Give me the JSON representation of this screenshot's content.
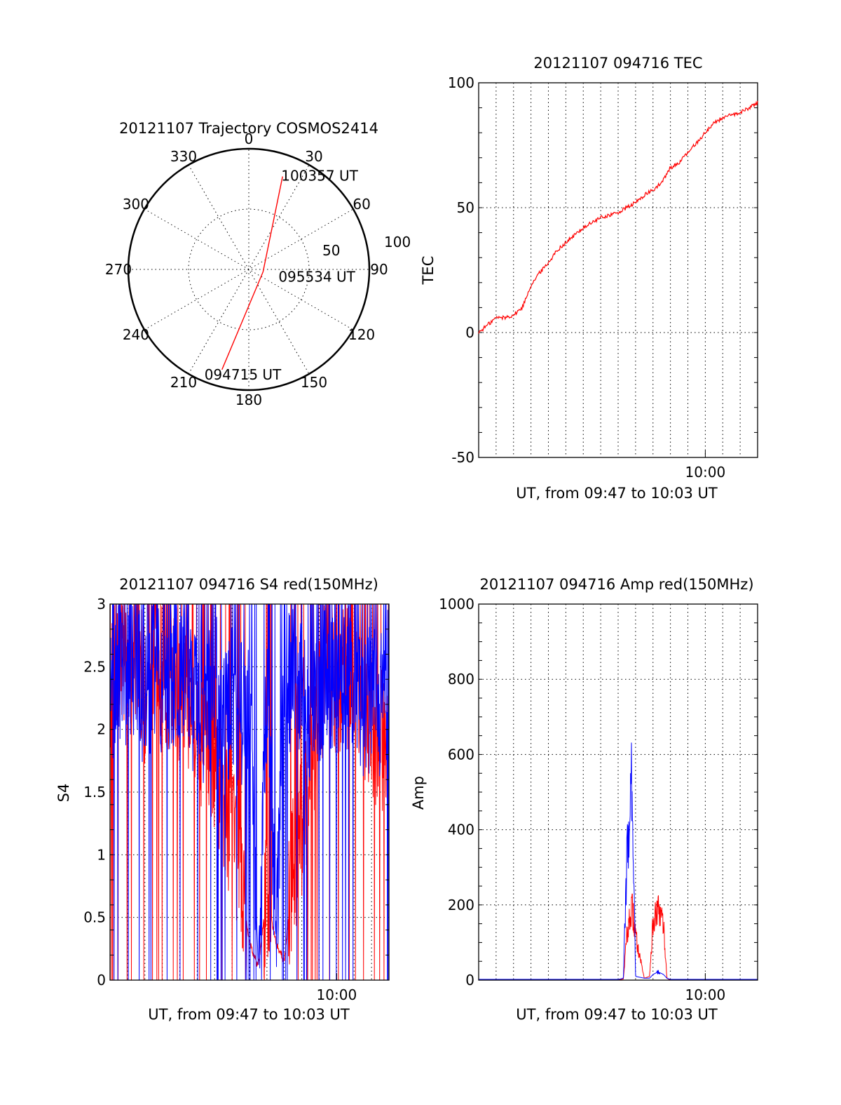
{
  "chart_data": [
    {
      "id": "trajectory",
      "type": "polar",
      "title": "20121107 Trajectory COSMOS2414",
      "azimuth_labels": [
        "0",
        "30",
        "60",
        "90",
        "120",
        "150",
        "180",
        "210",
        "240",
        "270",
        "300",
        "330"
      ],
      "radial_labels": [
        "50",
        "100"
      ],
      "rlim": [
        0,
        100
      ],
      "grid": true,
      "series": [
        {
          "color": "#ff0000",
          "points": [
            {
              "az": 20,
              "r": 82,
              "label": "100357 UT"
            },
            {
              "az": 100,
              "r": 12,
              "label": "095534 UT"
            },
            {
              "az": 195,
              "r": 86,
              "label": "094715 UT"
            }
          ]
        }
      ]
    },
    {
      "id": "tec",
      "type": "line",
      "title": "20121107 094716 TEC",
      "xlabel": "UT, from 09:47 to 10:03 UT",
      "ylabel": "TEC",
      "xlim": [
        "09:47",
        "10:03"
      ],
      "ylim": [
        -50,
        100
      ],
      "yticks": [
        "-50",
        "0",
        "50",
        "100"
      ],
      "xticks": [
        "10:00"
      ],
      "grid": true,
      "series": [
        {
          "color": "#ff0000",
          "x": [
            0,
            0.5,
            1,
            1.5,
            2,
            2.5,
            3,
            3.5,
            4,
            4.5,
            5,
            5.5,
            6,
            6.5,
            7,
            7.5,
            8,
            8.5,
            9,
            9.5,
            10,
            10.5,
            11,
            11.5,
            12,
            12.5,
            13,
            13.5,
            14,
            14.5,
            15,
            15.5,
            16
          ],
          "y": [
            0,
            3,
            6,
            6,
            7,
            10,
            19,
            24,
            28,
            33,
            36,
            39,
            42,
            44,
            46,
            47,
            48,
            50,
            52,
            55,
            57,
            60,
            66,
            68,
            72,
            76,
            80,
            84,
            86,
            87,
            88,
            90,
            92
          ]
        }
      ]
    },
    {
      "id": "s4",
      "type": "line",
      "title": "20121107 094716 S4 red(150MHz)",
      "xlabel": "UT, from 09:47 to 10:03 UT",
      "ylabel": "S4",
      "xlim": [
        "09:47",
        "10:03"
      ],
      "ylim": [
        0,
        3
      ],
      "yticks": [
        "0",
        "0.5",
        "1",
        "1.5",
        "2",
        "2.5",
        "3"
      ],
      "xticks": [
        "10:00"
      ],
      "grid": true,
      "series": [
        {
          "color": "#ff0000",
          "x": [
            0,
            0.5,
            1,
            1.5,
            2,
            2.5,
            3,
            3.5,
            4,
            4.5,
            5,
            5.5,
            6,
            6.5,
            7,
            7.5,
            8,
            8.5,
            9,
            9.5,
            10,
            10.5,
            11,
            11.5,
            12,
            12.5,
            13,
            13.5,
            14,
            14.5,
            15,
            15.5,
            16
          ],
          "y": [
            2.4,
            2.6,
            2.5,
            2.7,
            2.3,
            2.6,
            2.5,
            2.4,
            2.3,
            2.2,
            2.0,
            1.9,
            1.7,
            1.4,
            1.2,
            0.8,
            0.3,
            0.1,
            0.7,
            0.3,
            0.15,
            0.9,
            1.2,
            1.6,
            2.2,
            2.6,
            2.3,
            2.4,
            2.5,
            2.2,
            2.0,
            1.9,
            1.8
          ]
        },
        {
          "color": "#0000ff",
          "x": [
            0,
            0.5,
            1,
            1.5,
            2,
            2.5,
            3,
            3.5,
            4,
            4.5,
            5,
            5.5,
            6,
            6.5,
            7,
            7.5,
            8,
            8.5,
            9,
            9.5,
            10,
            10.5,
            11,
            11.5,
            12,
            12.5,
            13,
            13.5,
            14,
            14.5,
            15,
            15.5,
            16
          ],
          "y": [
            2.2,
            2.5,
            2.4,
            2.6,
            2.2,
            2.5,
            2.4,
            2.3,
            2.5,
            2.2,
            2.3,
            2.1,
            2.4,
            2.0,
            2.3,
            2.1,
            2.2,
            0.12,
            2.4,
            0.35,
            2.2,
            2.5,
            2.4,
            2.1,
            2.3,
            2.5,
            2.2,
            2.4,
            2.3,
            2.1,
            2.3,
            2.2,
            2.4
          ]
        }
      ]
    },
    {
      "id": "amp",
      "type": "line",
      "title": "20121107 094716 Amp red(150MHz)",
      "xlabel": "UT, from 09:47 to 10:03 UT",
      "ylabel": "Amp",
      "xlim": [
        "09:47",
        "10:03"
      ],
      "ylim": [
        0,
        1000
      ],
      "yticks": [
        "0",
        "200",
        "400",
        "600",
        "800",
        "1000"
      ],
      "xticks": [
        "10:00"
      ],
      "grid": true,
      "series": [
        {
          "color": "#ff0000",
          "x": [
            0,
            4,
            8,
            8.3,
            8.5,
            8.8,
            9,
            9.5,
            9.8,
            10,
            10.3,
            10.6,
            10.8,
            11,
            12,
            16
          ],
          "y": [
            0,
            0,
            0,
            3,
            120,
            190,
            120,
            5,
            10,
            150,
            185,
            150,
            5,
            0,
            0,
            0
          ]
        },
        {
          "color": "#0000ff",
          "x": [
            0,
            4,
            8,
            8.3,
            8.5,
            8.8,
            8.9,
            9,
            9.5,
            9.8,
            10,
            10.3,
            10.6,
            10.8,
            11,
            12,
            16
          ],
          "y": [
            2,
            2,
            2,
            5,
            320,
            540,
            300,
            10,
            5,
            5,
            15,
            22,
            15,
            5,
            2,
            2,
            2
          ]
        }
      ]
    }
  ]
}
